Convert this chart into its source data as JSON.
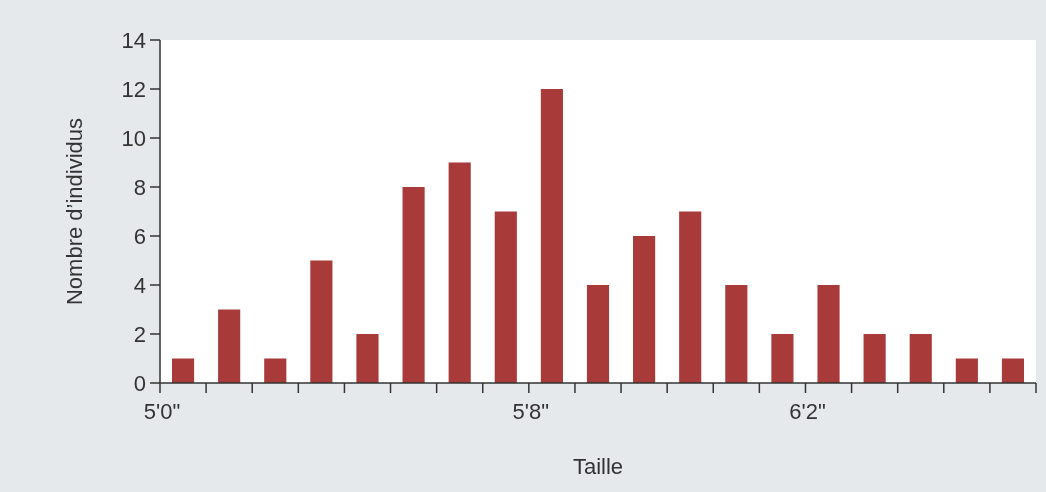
{
  "chart_data": {
    "type": "bar",
    "xlabel": "Taille",
    "ylabel": "Nombre d’individus",
    "categories": [
      "5'0\"",
      null,
      null,
      null,
      null,
      null,
      null,
      null,
      "5'8\"",
      null,
      null,
      null,
      null,
      null,
      "6'2\"",
      null,
      null,
      null,
      null
    ],
    "values": [
      1,
      3,
      1,
      5,
      2,
      8,
      9,
      7,
      12,
      4,
      6,
      7,
      4,
      2,
      4,
      2,
      2,
      1,
      1
    ],
    "color": "#a83a3a",
    "ylim": [
      0,
      14
    ],
    "yticks": [
      0,
      2,
      4,
      6,
      8,
      10,
      12,
      14
    ]
  }
}
